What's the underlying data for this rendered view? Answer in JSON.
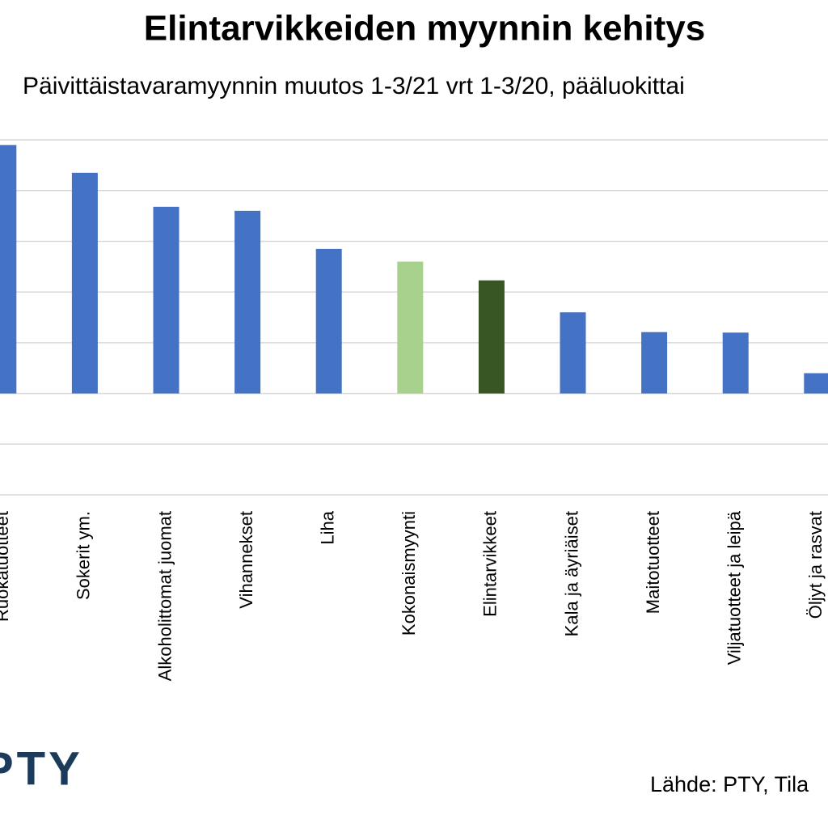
{
  "chart_data": {
    "type": "bar",
    "title": "Elintarvikkeiden myynnin kehitys",
    "subtitle": "Päivittäistavaramyynnin muutos 1-3/21 vrt 1-3/20, pääluokittai",
    "categories": [
      "Ruokatuotteet",
      "Sokerit ym.",
      "Alkoholittomat juomat",
      "Vihannekset",
      "Liha",
      "Kokonaismyynti",
      "Elintarvikkeet",
      "Kala ja äyriäiset",
      "Maitotuotteet",
      "Viljatuotteet ja leipä",
      "Öljyt ja rasvat"
    ],
    "values": [
      4.9,
      4.35,
      3.68,
      3.6,
      2.85,
      2.6,
      2.23,
      1.6,
      1.21,
      1.2,
      0.4
    ],
    "colors": [
      "#4472c4",
      "#4472c4",
      "#4472c4",
      "#4472c4",
      "#4472c4",
      "#a9d18e",
      "#375623",
      "#4472c4",
      "#4472c4",
      "#4472c4",
      "#4472c4"
    ],
    "ylim": [
      -2,
      5.2
    ],
    "yticks": [
      -2,
      -1,
      0,
      1,
      2,
      3,
      4,
      5
    ],
    "grid": true,
    "source": "Lähde: PTY, Tila",
    "logo": "PTY"
  }
}
